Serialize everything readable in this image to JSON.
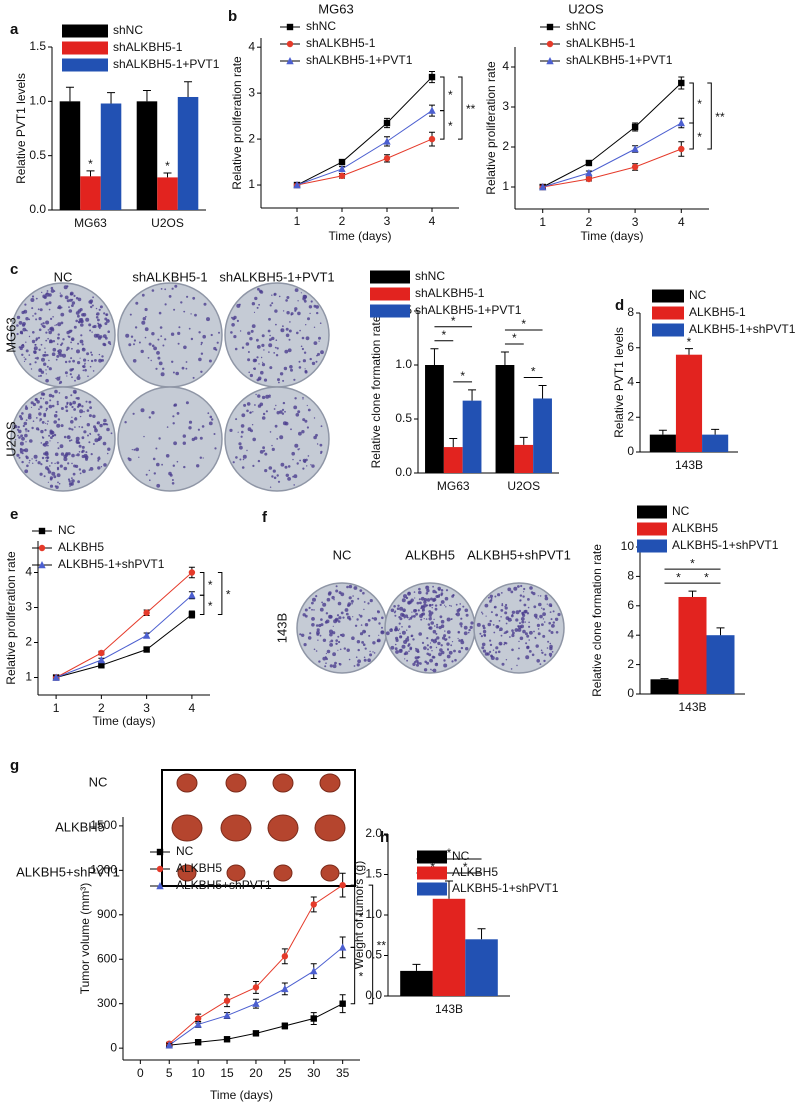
{
  "panel_labels": [
    "a",
    "b",
    "c",
    "d",
    "e",
    "f",
    "g",
    "h"
  ],
  "colony_panel_c": {
    "columns": [
      "NC",
      "shALKBH5-1",
      "shALKBH5-1+PVT1"
    ],
    "rows": [
      "MG63",
      "U2OS"
    ]
  },
  "colony_panel_f": {
    "columns": [
      "NC",
      "ALKBH5",
      "ALKBH5+shPVT1"
    ],
    "rows": [
      "143B"
    ]
  },
  "tumor_panel_g": {
    "rows": [
      "NC",
      "ALKBH5",
      "ALKBH5+shPVT1"
    ]
  },
  "chart_data": [
    {
      "type": "bar",
      "y_label": "Relative PVT1 levels",
      "categories": [
        "MG63",
        "U2OS"
      ],
      "series": [
        {
          "name": "shNC",
          "color": "#000000",
          "values": [
            1.0,
            1.0
          ],
          "errors": [
            0.13,
            0.1
          ]
        },
        {
          "name": "shALKBH5-1",
          "color": "#e2231f",
          "values": [
            0.31,
            0.3
          ],
          "errors": [
            0.05,
            0.04
          ]
        },
        {
          "name": "shALKBH5-1+PVT1",
          "color": "#2251b3",
          "values": [
            0.98,
            1.04
          ],
          "errors": [
            0.1,
            0.14
          ]
        }
      ],
      "ylim": [
        0,
        1.5
      ],
      "yticks": [
        {
          "value": 0,
          "label": "0.0"
        },
        0.5,
        {
          "value": 1,
          "label": "1.0"
        },
        1.5
      ],
      "significance": [
        {
          "at": [
            0,
            1
          ],
          "label": "*"
        },
        {
          "at": [
            1,
            1
          ],
          "label": "*"
        }
      ]
    },
    {
      "type": "line",
      "title": "MG63",
      "x_label": "Time (days)",
      "y_label": "Relative proliferation rate",
      "x": [
        1,
        2,
        3,
        4
      ],
      "xlim": [
        0.2,
        4.6
      ],
      "xticks": [
        1,
        2,
        3,
        4
      ],
      "series": [
        {
          "name": "shNC",
          "color": "#000000",
          "marker": "square",
          "values": [
            1,
            1.5,
            2.35,
            3.35
          ],
          "errors": [
            0.05,
            0.05,
            0.1,
            0.12
          ]
        },
        {
          "name": "shALKBH5-1",
          "color": "#e53a2a",
          "marker": "circle",
          "values": [
            1,
            1.2,
            1.58,
            2.0
          ],
          "errors": [
            0.05,
            0.05,
            0.08,
            0.15
          ]
        },
        {
          "name": "shALKBH5-1+PVT1",
          "color": "#4c5fd0",
          "marker": "triangle",
          "values": [
            1,
            1.35,
            1.95,
            2.62
          ],
          "errors": [
            0.05,
            0.05,
            0.1,
            0.12
          ]
        }
      ],
      "ylim": [
        0.5,
        4.2
      ],
      "yticks": [
        1,
        2,
        3,
        4
      ],
      "significance": [
        {
          "between": [
            0,
            2
          ],
          "label": "*"
        },
        {
          "between": [
            2,
            1
          ],
          "label": "*"
        },
        {
          "between": [
            0,
            1
          ],
          "label": "**"
        }
      ]
    },
    {
      "type": "line",
      "title": "U2OS",
      "x_label": "Time (days)",
      "y_label": "Relative proliferation rate",
      "x": [
        1,
        2,
        3,
        4
      ],
      "xlim": [
        0.4,
        4.6
      ],
      "xticks": [
        1,
        2,
        3,
        4
      ],
      "series": [
        {
          "name": "shNC",
          "color": "#000000",
          "marker": "square",
          "values": [
            1,
            1.6,
            2.5,
            3.6
          ],
          "errors": [
            0.05,
            0.05,
            0.1,
            0.15
          ]
        },
        {
          "name": "shALKBH5-1",
          "color": "#e53a2a",
          "marker": "circle",
          "values": [
            1,
            1.2,
            1.5,
            1.95
          ],
          "errors": [
            0.05,
            0.05,
            0.08,
            0.18
          ]
        },
        {
          "name": "shALKBH5-1+PVT1",
          "color": "#4c5fd0",
          "marker": "triangle",
          "values": [
            1,
            1.35,
            1.95,
            2.6
          ],
          "errors": [
            0.05,
            0.05,
            0.08,
            0.12
          ]
        }
      ],
      "ylim": [
        0.45,
        4.5
      ],
      "yticks": [
        1,
        2,
        3,
        4
      ],
      "significance": [
        {
          "between": [
            0,
            2
          ],
          "label": "*"
        },
        {
          "between": [
            2,
            1
          ],
          "label": "*"
        },
        {
          "between": [
            0,
            1
          ],
          "label": "**"
        }
      ]
    },
    {
      "type": "bar",
      "y_label": "Relative clone formation rate",
      "categories": [
        "MG63",
        "U2OS"
      ],
      "series": [
        {
          "name": "shNC",
          "color": "#000000",
          "values": [
            1.0,
            1.0
          ],
          "errors": [
            0.15,
            0.12
          ]
        },
        {
          "name": "shALKBH5-1",
          "color": "#e2231f",
          "values": [
            0.24,
            0.26
          ],
          "errors": [
            0.08,
            0.07
          ]
        },
        {
          "name": "shALKBH5-1+PVT1",
          "color": "#2251b3",
          "values": [
            0.67,
            0.69
          ],
          "errors": [
            0.1,
            0.12
          ]
        }
      ],
      "ylim": [
        0,
        1.5
      ],
      "yticks": [
        {
          "value": 0,
          "label": "0.0"
        },
        0.5,
        {
          "value": 1,
          "label": "1.0"
        },
        1.5
      ],
      "significance": [
        {
          "between": [
            [
              0,
              0
            ],
            [
              0,
              1
            ]
          ],
          "label": "*"
        },
        {
          "between": [
            [
              0,
              1
            ],
            [
              0,
              2
            ]
          ],
          "label": "*"
        },
        {
          "between": [
            [
              0,
              0
            ],
            [
              0,
              2
            ]
          ],
          "label": "*"
        },
        {
          "between": [
            [
              1,
              0
            ],
            [
              1,
              1
            ]
          ],
          "label": "*"
        },
        {
          "between": [
            [
              1,
              1
            ],
            [
              1,
              2
            ]
          ],
          "label": "*"
        },
        {
          "between": [
            [
              1,
              0
            ],
            [
              1,
              2
            ]
          ],
          "label": "*"
        }
      ]
    },
    {
      "type": "bar",
      "y_label": "Relative PVT1 levels",
      "categories": [
        "143B"
      ],
      "series": [
        {
          "name": "NC",
          "color": "#000000",
          "values": [
            1.0
          ],
          "errors": [
            0.25
          ]
        },
        {
          "name": "ALKBH5-1",
          "color": "#e2231f",
          "values": [
            5.6
          ],
          "errors": [
            0.35
          ]
        },
        {
          "name": "ALKBH5-1+shPVT1",
          "color": "#2251b3",
          "values": [
            1.0
          ],
          "errors": [
            0.3
          ]
        }
      ],
      "ylim": [
        0,
        8
      ],
      "yticks": [
        0,
        2,
        4,
        6,
        8
      ],
      "significance": [
        {
          "at": [
            0,
            1
          ],
          "label": "*"
        }
      ]
    },
    {
      "type": "line",
      "x_label": "Time (days)",
      "y_label": "Relative proliferation rate",
      "x": [
        1,
        2,
        3,
        4
      ],
      "xlim": [
        0.6,
        4.4
      ],
      "xticks": [
        1,
        2,
        3,
        4
      ],
      "series": [
        {
          "name": "NC",
          "color": "#000000",
          "marker": "square",
          "values": [
            1,
            1.35,
            1.8,
            2.8
          ],
          "errors": [
            0.05,
            0.05,
            0.07,
            0.1
          ]
        },
        {
          "name": "ALKBH5",
          "color": "#e53a2a",
          "marker": "circle",
          "values": [
            1,
            1.7,
            2.85,
            4.0
          ],
          "errors": [
            0.05,
            0.05,
            0.08,
            0.15
          ]
        },
        {
          "name": "ALKBH5-1+shPVT1",
          "color": "#4c5fd0",
          "marker": "triangle",
          "values": [
            1,
            1.5,
            2.2,
            3.35
          ],
          "errors": [
            0.05,
            0.05,
            0.07,
            0.1
          ]
        }
      ],
      "ylim": [
        0.5,
        4.9
      ],
      "yticks": [
        1,
        2,
        3,
        4
      ],
      "significance": [
        {
          "between": [
            1,
            2
          ],
          "label": "*"
        },
        {
          "between": [
            2,
            0
          ],
          "label": "*"
        },
        {
          "between": [
            1,
            0
          ],
          "label": "*"
        }
      ]
    },
    {
      "type": "bar",
      "y_label": "Relative clone formation rate",
      "categories": [
        "143B"
      ],
      "series": [
        {
          "name": "NC",
          "color": "#000000",
          "values": [
            1.0
          ],
          "errors": [
            0.05
          ]
        },
        {
          "name": "ALKBH5",
          "color": "#e2231f",
          "values": [
            6.6
          ],
          "errors": [
            0.4
          ]
        },
        {
          "name": "ALKBH5-1+shPVT1",
          "color": "#2251b3",
          "values": [
            4.0
          ],
          "errors": [
            0.5
          ]
        }
      ],
      "ylim": [
        0,
        10
      ],
      "yticks": [
        0,
        2,
        4,
        6,
        8,
        10
      ],
      "significance": [
        {
          "between": [
            [
              0,
              0
            ],
            [
              0,
              1
            ]
          ],
          "label": "*"
        },
        {
          "between": [
            [
              0,
              1
            ],
            [
              0,
              2
            ]
          ],
          "label": "*"
        },
        {
          "between": [
            [
              0,
              0
            ],
            [
              0,
              2
            ]
          ],
          "label": "*"
        }
      ]
    },
    {
      "type": "line",
      "x_label": "Time (days)",
      "y_label": "Tumor volume (mm³)",
      "x": [
        5,
        10,
        15,
        20,
        25,
        30,
        35
      ],
      "xlim": [
        -3,
        38
      ],
      "xticks": [
        0,
        5,
        10,
        15,
        20,
        25,
        30,
        35
      ],
      "series": [
        {
          "name": "NC",
          "color": "#000000",
          "marker": "square",
          "values": [
            20,
            40,
            60,
            100,
            150,
            200,
            300
          ],
          "errors": [
            5,
            10,
            10,
            15,
            20,
            40,
            60
          ]
        },
        {
          "name": "ALKBH5",
          "color": "#e53a2a",
          "marker": "circle",
          "values": [
            30,
            200,
            320,
            410,
            620,
            970,
            1100
          ],
          "errors": [
            10,
            30,
            40,
            40,
            50,
            50,
            80
          ]
        },
        {
          "name": "ALKBH5+shPVT1",
          "color": "#4c5fd0",
          "marker": "triangle",
          "values": [
            20,
            160,
            220,
            300,
            400,
            520,
            680
          ],
          "errors": [
            10,
            20,
            20,
            30,
            40,
            50,
            70
          ]
        }
      ],
      "ylim": [
        -80,
        1560
      ],
      "yticks": [
        0,
        300,
        600,
        900,
        1200,
        1500
      ],
      "significance": [
        {
          "between": [
            1,
            2
          ],
          "label": "*"
        },
        {
          "between": [
            2,
            0
          ],
          "label": "*"
        },
        {
          "between": [
            1,
            0
          ],
          "label": "**"
        }
      ]
    },
    {
      "type": "bar",
      "y_label": "Weight of tumors (g)",
      "categories": [
        "143B"
      ],
      "series": [
        {
          "name": "NC",
          "color": "#000000",
          "values": [
            0.31
          ],
          "errors": [
            0.08
          ]
        },
        {
          "name": "ALKBH5",
          "color": "#e2231f",
          "values": [
            1.2
          ],
          "errors": [
            0.22
          ]
        },
        {
          "name": "ALKBH5-1+shPVT1",
          "color": "#2251b3",
          "values": [
            0.7
          ],
          "errors": [
            0.13
          ]
        }
      ],
      "ylim": [
        0,
        2.0
      ],
      "yticks": [
        {
          "value": 0,
          "label": "0.0"
        },
        0.5,
        {
          "value": 1,
          "label": "1.0"
        },
        1.5,
        {
          "value": 2,
          "label": "2.0"
        }
      ],
      "significance": [
        {
          "between": [
            [
              0,
              0
            ],
            [
              0,
              1
            ]
          ],
          "label": "*"
        },
        {
          "between": [
            [
              0,
              1
            ],
            [
              0,
              2
            ]
          ],
          "label": "*"
        },
        {
          "between": [
            [
              0,
              0
            ],
            [
              0,
              2
            ]
          ],
          "label": "*"
        }
      ]
    }
  ]
}
